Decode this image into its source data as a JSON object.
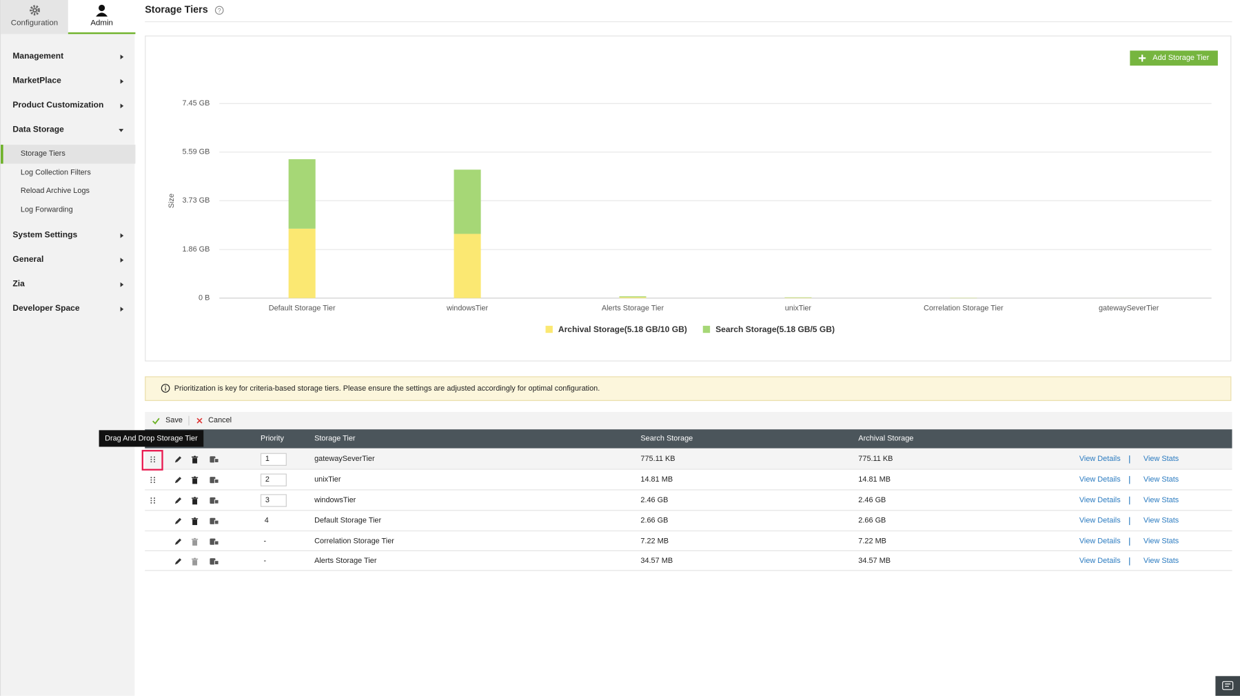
{
  "sidebar": {
    "tabs": [
      "Configuration",
      "Admin"
    ],
    "menu": [
      {
        "label": "Management"
      },
      {
        "label": "MarketPlace"
      },
      {
        "label": "Product Customization"
      },
      {
        "label": "Data Storage",
        "children": [
          "Storage Tiers",
          "Log Collection Filters",
          "Reload Archive Logs",
          "Log Forwarding"
        ]
      },
      {
        "label": "System Settings"
      },
      {
        "label": "General"
      },
      {
        "label": "Zia"
      },
      {
        "label": "Developer Space"
      }
    ]
  },
  "header": {
    "title": "Storage Tiers"
  },
  "add_button": "Add Storage Tier",
  "chart_data": {
    "type": "stacked-bar",
    "ylabel": "Size",
    "categories": [
      "Default Storage Tier",
      "windowsTier",
      "Alerts Storage Tier",
      "unixTier",
      "Correlation Storage Tier",
      "gatewaySeverTier"
    ],
    "series": [
      {
        "name": "Archival Storage(5.18 GB/10 GB)",
        "color": "#fbe872",
        "values": [
          2.66,
          2.46,
          0.034,
          0.0145,
          0.007,
          0.00074
        ]
      },
      {
        "name": "Search Storage(5.18 GB/5 GB)",
        "color": "#a6d776",
        "values": [
          2.66,
          2.46,
          0.034,
          0.0145,
          0.007,
          0.00074
        ]
      }
    ],
    "ylim": [
      0,
      7.45
    ],
    "yticks": [
      {
        "value": 0,
        "label": "0 B"
      },
      {
        "value": 1.86,
        "label": "1.86 GB"
      },
      {
        "value": 3.73,
        "label": "3.73 GB"
      },
      {
        "value": 5.59,
        "label": "5.59 GB"
      },
      {
        "value": 7.45,
        "label": "7.45 GB"
      }
    ],
    "grid": true
  },
  "notice": "Prioritization is key for criteria-based storage tiers. Please ensure the settings are adjusted accordingly for optimal configuration.",
  "toolbar": [
    "Save",
    "Cancel"
  ],
  "tooltip": "Drag And Drop Storage Tier",
  "table": {
    "columns": [
      "Priority",
      "Storage Tier",
      "Search Storage",
      "Archival Storage"
    ],
    "rows": [
      [
        "1",
        "gatewaySeverTier",
        "775.11 KB",
        "775.11 KB"
      ],
      [
        "2",
        "unixTier",
        "14.81 MB",
        "14.81 MB"
      ],
      [
        "3",
        "windowsTier",
        "2.46 GB",
        "2.46 GB"
      ],
      [
        "4",
        "Default Storage Tier",
        "2.66 GB",
        "2.66 GB"
      ],
      [
        "-",
        "Correlation Storage Tier",
        "7.22 MB",
        "7.22 MB"
      ],
      [
        "-",
        "Alerts Storage Tier",
        "34.57 MB",
        "34.57 MB"
      ]
    ],
    "actions": [
      "View Details",
      "View Stats"
    ]
  }
}
